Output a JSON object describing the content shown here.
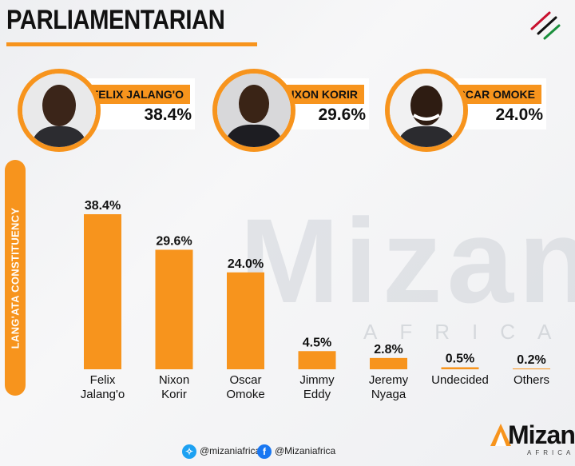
{
  "header": {
    "title": "PARLIAMENTARIAN"
  },
  "candidates": [
    {
      "name": "FELIX JALANG'O",
      "percent": "38.4%"
    },
    {
      "name": "NIXON KORIR",
      "percent": "29.6%"
    },
    {
      "name": "OSCAR OMOKE",
      "percent": "24.0%"
    }
  ],
  "side_label": "LANG'ATA CONSTITUENCY",
  "watermark": {
    "word": "Mizani",
    "sub": "AFRICA"
  },
  "colors": {
    "accent": "#f7941d",
    "text": "#111111",
    "twitter": "#1da1f2",
    "facebook": "#1877f2"
  },
  "chart_data": {
    "type": "bar",
    "categories": [
      [
        "Felix",
        "Jalang'o"
      ],
      [
        "Nixon",
        "Korir"
      ],
      [
        "Oscar",
        "Omoke"
      ],
      [
        "Jimmy",
        "Eddy"
      ],
      [
        "Jeremy",
        "Nyaga"
      ],
      [
        "Undecided"
      ],
      [
        "Others"
      ]
    ],
    "values": [
      38.4,
      29.6,
      24.0,
      4.5,
      2.8,
      0.5,
      0.2
    ],
    "value_labels": [
      "38.4%",
      "29.6%",
      "24.0%",
      "4.5%",
      "2.8%",
      "0.5%",
      "0.2%"
    ],
    "ylim": [
      0,
      38.4
    ],
    "grid": false,
    "legend": "none"
  },
  "footer": {
    "twitter_handle": "@mizaniafrica",
    "facebook_handle": "@Mizaniafrica",
    "twitter_icon": "twitter-icon",
    "facebook_icon": "facebook-icon"
  },
  "logo": {
    "word": "Mizani",
    "sub": "AFRICA"
  }
}
